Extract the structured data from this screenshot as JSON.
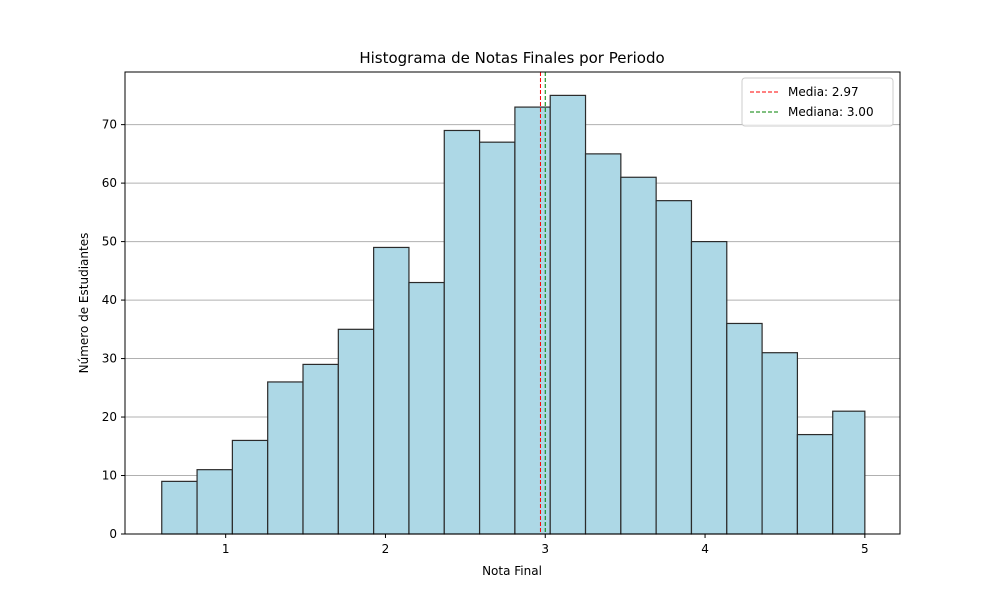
{
  "chart_data": {
    "type": "bar",
    "subtype": "histogram",
    "title": "Histograma de Notas Finales por Periodo",
    "xlabel": "Nota Final",
    "ylabel": "Número de Estudiantes",
    "xlim": [
      0.37,
      5.22
    ],
    "ylim": [
      0,
      79
    ],
    "xticks": [
      1,
      2,
      3,
      4,
      5
    ],
    "yticks": [
      0,
      10,
      20,
      30,
      40,
      50,
      60,
      70
    ],
    "bin_edges": [
      0.6,
      0.821,
      1.042,
      1.263,
      1.484,
      1.705,
      1.926,
      2.147,
      2.368,
      2.589,
      2.81,
      3.031,
      3.252,
      3.473,
      3.694,
      3.915,
      4.136,
      4.357,
      4.578,
      4.799,
      5.0
    ],
    "values": [
      9,
      11,
      16,
      26,
      29,
      35,
      49,
      43,
      69,
      67,
      73,
      75,
      65,
      61,
      57,
      50,
      36,
      31,
      17,
      21
    ],
    "bar_color": "#add8e6",
    "edge_color": "#000000",
    "grid": "y",
    "legend_position": "top-right",
    "reference_lines": [
      {
        "label": "Media: 2.97",
        "x": 2.97,
        "color": "#ff0000",
        "style": "dashed"
      },
      {
        "label": "Mediana: 3.00",
        "x": 3.0,
        "color": "#008000",
        "style": "dashed"
      }
    ]
  }
}
